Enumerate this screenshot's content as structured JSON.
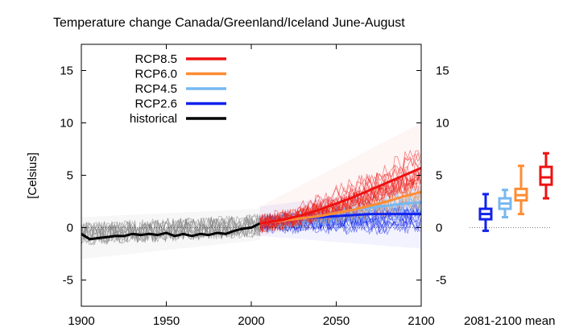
{
  "chart_data": {
    "type": "line",
    "title": "Temperature change Canada/Greenland/Iceland June-August",
    "ylabel": "[Celsius]",
    "xlabel": "",
    "xlim": [
      1900,
      2100
    ],
    "ylim": [
      -7.5,
      17.5
    ],
    "x_ticks": [
      "1900",
      "1950",
      "2000",
      "2050",
      "2100"
    ],
    "y_ticks": [
      "-5",
      "0",
      "5",
      "10",
      "15"
    ],
    "zero_line": 0,
    "grid": false,
    "legend": {
      "position": "top-left",
      "entries": [
        {
          "label": "RCP8.5",
          "color": "#ee1111"
        },
        {
          "label": "RCP6.0",
          "color": "#ff8c33"
        },
        {
          "label": "RCP4.5",
          "color": "#77b8f0"
        },
        {
          "label": "RCP2.6",
          "color": "#1122ee"
        },
        {
          "label": "historical",
          "color": "#000000"
        }
      ]
    },
    "series": [
      {
        "name": "historical",
        "color": "#000000",
        "x": [
          1900,
          1905,
          1910,
          1915,
          1920,
          1925,
          1930,
          1935,
          1940,
          1945,
          1950,
          1955,
          1960,
          1965,
          1970,
          1975,
          1980,
          1985,
          1990,
          1995,
          2000,
          2005
        ],
        "values": [
          -0.6,
          -1.1,
          -1.0,
          -0.9,
          -0.8,
          -0.8,
          -0.6,
          -0.7,
          -0.6,
          -0.7,
          -0.5,
          -0.8,
          -0.6,
          -0.8,
          -0.6,
          -0.7,
          -0.5,
          -0.6,
          -0.3,
          -0.1,
          0.0,
          0.4
        ]
      },
      {
        "name": "RCP2.6",
        "color": "#1122ee",
        "x": [
          2005,
          2010,
          2020,
          2030,
          2040,
          2050,
          2060,
          2070,
          2080,
          2090,
          2100
        ],
        "values": [
          0.4,
          0.5,
          0.7,
          0.9,
          1.0,
          1.1,
          1.2,
          1.3,
          1.3,
          1.3,
          1.3
        ]
      },
      {
        "name": "RCP4.5",
        "color": "#77b8f0",
        "x": [
          2005,
          2010,
          2020,
          2030,
          2040,
          2050,
          2060,
          2070,
          2080,
          2090,
          2100
        ],
        "values": [
          0.4,
          0.5,
          0.7,
          0.9,
          1.1,
          1.4,
          1.7,
          1.9,
          2.1,
          2.3,
          2.4
        ]
      },
      {
        "name": "RCP6.0",
        "color": "#ff8c33",
        "x": [
          2005,
          2010,
          2020,
          2030,
          2040,
          2050,
          2060,
          2070,
          2080,
          2090,
          2100
        ],
        "values": [
          0.4,
          0.5,
          0.7,
          0.9,
          1.1,
          1.4,
          1.7,
          2.1,
          2.5,
          3.0,
          3.4
        ]
      },
      {
        "name": "RCP8.5",
        "color": "#ee1111",
        "x": [
          2005,
          2010,
          2020,
          2030,
          2040,
          2050,
          2060,
          2070,
          2080,
          2090,
          2100
        ],
        "values": [
          0.4,
          0.5,
          0.8,
          1.2,
          1.7,
          2.3,
          2.9,
          3.6,
          4.3,
          5.0,
          5.7
        ]
      }
    ],
    "ensemble_ranges": [
      {
        "scenario": "historical",
        "color": "#999999",
        "x": [
          1900,
          2005
        ],
        "low": [
          -3.0,
          -1.2
        ],
        "high": [
          1.0,
          1.8
        ]
      },
      {
        "scenario": "RCP8.5",
        "color": "#f08080",
        "x": [
          2005,
          2100
        ],
        "low": [
          -0.8,
          2.5
        ],
        "high": [
          2.0,
          10.0
        ]
      },
      {
        "scenario": "RCP2.6",
        "color": "#5566ee",
        "x": [
          2005,
          2100
        ],
        "low": [
          -0.8,
          -2.0
        ],
        "high": [
          2.0,
          4.0
        ]
      }
    ],
    "period_summary": {
      "label": "2081-2100 mean",
      "boxes": [
        {
          "scenario": "RCP2.6",
          "color": "#1122ee",
          "min": -0.3,
          "q1": 0.8,
          "median": 1.3,
          "q3": 1.8,
          "max": 3.2
        },
        {
          "scenario": "RCP4.5",
          "color": "#77b8f0",
          "min": 1.0,
          "q1": 1.8,
          "median": 2.3,
          "q3": 2.8,
          "max": 3.6
        },
        {
          "scenario": "RCP6.0",
          "color": "#ff8c33",
          "min": 1.3,
          "q1": 2.6,
          "median": 3.1,
          "q3": 3.7,
          "max": 5.9
        },
        {
          "scenario": "RCP8.5",
          "color": "#ee1111",
          "min": 2.8,
          "q1": 4.1,
          "median": 4.8,
          "q3": 5.8,
          "max": 7.1
        }
      ]
    }
  }
}
